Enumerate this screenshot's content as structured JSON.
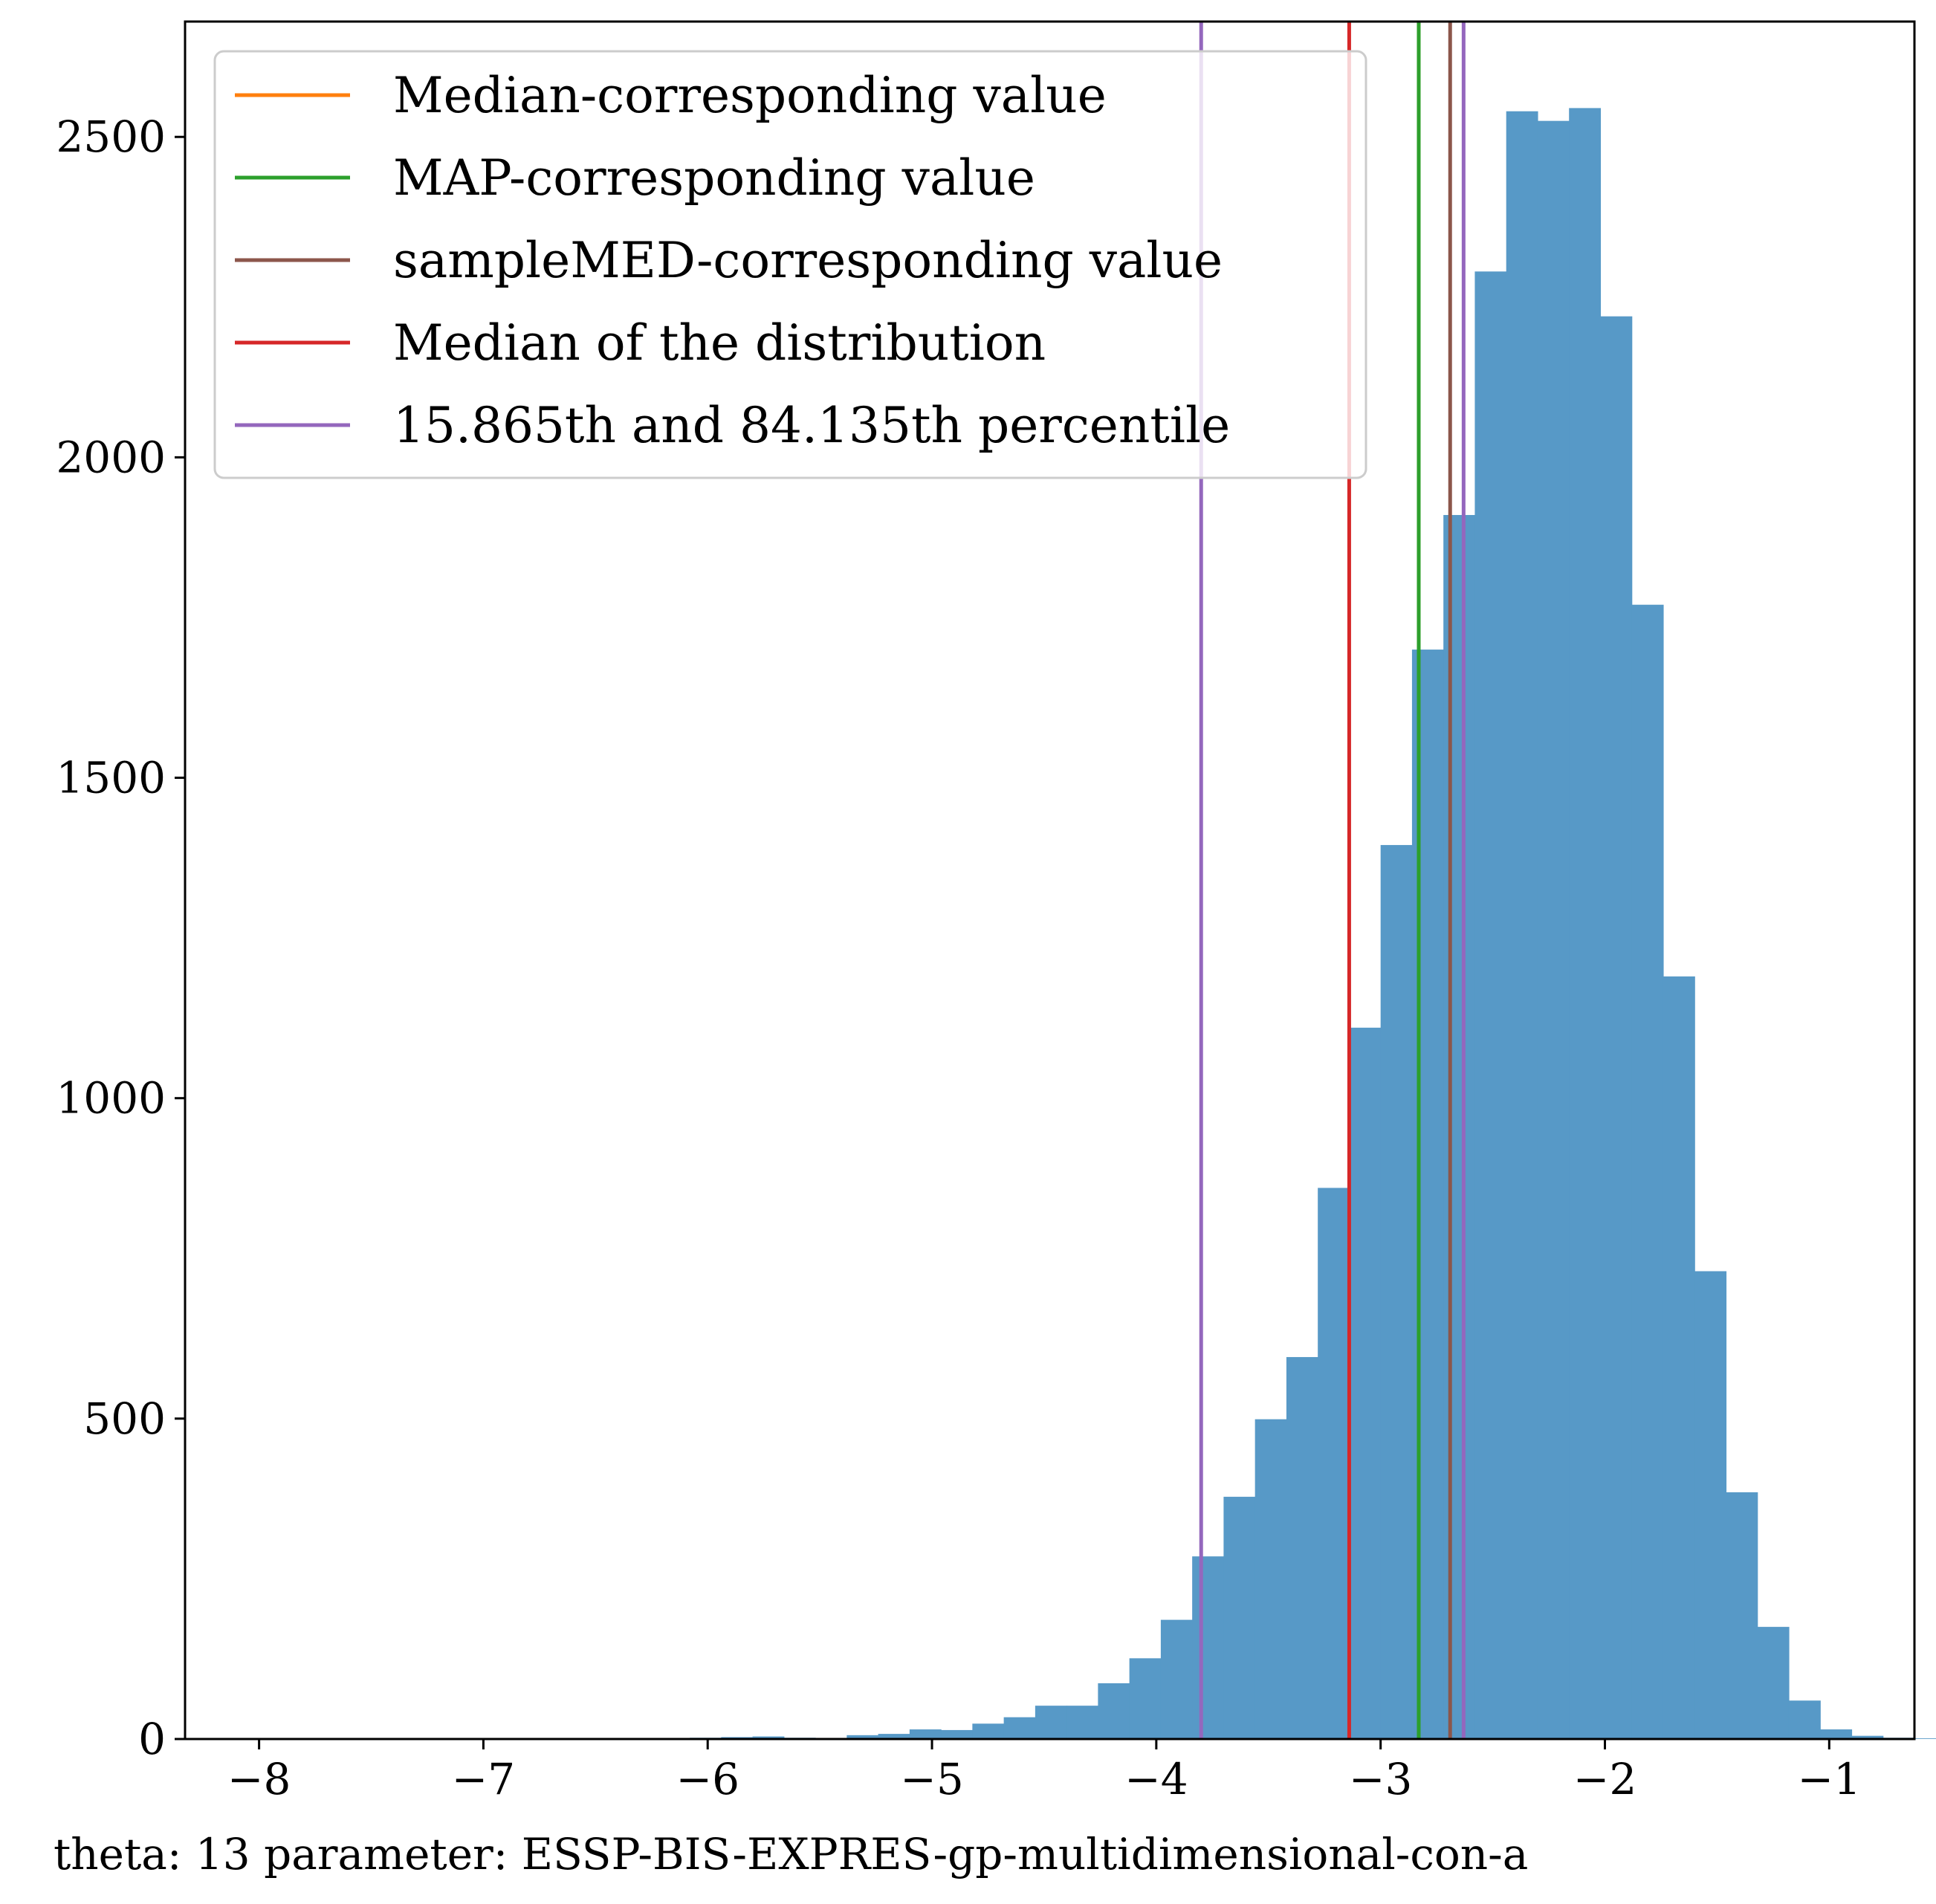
{
  "chart_data": {
    "type": "bar",
    "title": "",
    "xlabel": "theta: 13 parameter: ESSP-BIS-EXPRES-gp-multidimensional-con-a",
    "ylabel": "",
    "xlim": [
      -8.33,
      -0.62
    ],
    "ylim": [
      0,
      2680
    ],
    "xticks": [
      -8,
      -7,
      -6,
      -5,
      -4,
      -3,
      -2,
      -1
    ],
    "xtick_labels": [
      "−8",
      "−7",
      "−6",
      "−5",
      "−4",
      "−3",
      "−2",
      "−1"
    ],
    "yticks": [
      0,
      500,
      1000,
      1500,
      2000,
      2500
    ],
    "ytick_labels": [
      "0",
      "500",
      "1000",
      "1500",
      "2000",
      "2500"
    ],
    "grid": false,
    "bar_color": "#5799c7",
    "histogram": {
      "bin_start": -8.04,
      "bin_width": 0.14,
      "counts": [
        1,
        0,
        0,
        0,
        0,
        1,
        1,
        0,
        0,
        0,
        0,
        0,
        0,
        1,
        2,
        3,
        4,
        2,
        0,
        6,
        8,
        15,
        14,
        24,
        34,
        52,
        52,
        87,
        126,
        186,
        285,
        378,
        499,
        596,
        860,
        1110,
        1395,
        1700,
        1910,
        2290,
        2540,
        2525,
        2545,
        2220,
        1770,
        1190,
        730,
        385,
        175,
        60,
        15,
        5,
        2,
        1,
        1,
        0
      ]
    },
    "vlines": [
      {
        "label": "Median-corresponding value",
        "color": "#ff7f0e",
        "x": -2.83
      },
      {
        "label": "MAP-corresponding value",
        "color": "#2ca02c",
        "x": -2.83
      },
      {
        "label": "sampleMED-corresponding value",
        "color": "#8c564b",
        "x": -2.69
      },
      {
        "label": "Median of the distribution",
        "color": "#d62728",
        "x": -3.14
      },
      {
        "label": "15.865th and 84.135th percentile",
        "color": "#9467bd",
        "x": -3.8
      },
      {
        "label": "15.865th and 84.135th percentile",
        "color": "#9467bd",
        "x": -2.63
      }
    ],
    "legend": {
      "location": "upper-left",
      "entries": [
        {
          "label": "Median-corresponding value",
          "color": "#ff7f0e"
        },
        {
          "label": "MAP-corresponding value",
          "color": "#2ca02c"
        },
        {
          "label": "sampleMED-corresponding value",
          "color": "#8c564b"
        },
        {
          "label": "Median of the distribution",
          "color": "#d62728"
        },
        {
          "label": "15.865th and 84.135th percentile",
          "color": "#9467bd"
        }
      ]
    }
  }
}
